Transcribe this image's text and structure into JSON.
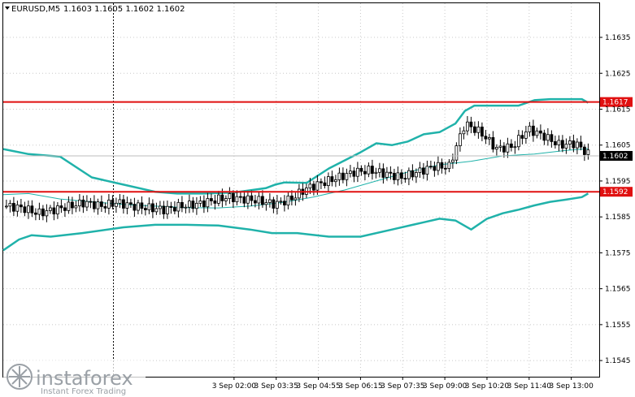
{
  "header": {
    "title": "EURUSD,M5",
    "ohlc": "1.1603 1.1605 1.1602 1.1602"
  },
  "watermark": {
    "brand": "instaforex",
    "tagline": "Instant Forex Trading"
  },
  "colors": {
    "background": "#ffffff",
    "grid": "#c8c8c8",
    "band": "#20b2aa",
    "level": "#e01010",
    "candle": "#000000",
    "price_label_bg": "#000000",
    "price_label_fg": "#ffffff"
  },
  "chart_data": {
    "type": "line",
    "title": "",
    "symbol": "EURUSD",
    "timeframe": "M5",
    "ylim": [
      1.15405,
      1.16445
    ],
    "y_ticks": [
      "1.1635",
      "1.1625",
      "1.1615",
      "1.1605",
      "1.1595",
      "1.1585",
      "1.1575",
      "1.1565",
      "1.1555",
      "1.1545"
    ],
    "x_ticks": [
      "3 Sep 02:00",
      "3 Sep 03:35",
      "3 Sep 04:55",
      "3 Sep 06:15",
      "3 Sep 07:35",
      "3 Sep 09:00",
      "3 Sep 10:20",
      "3 Sep 11:40",
      "3 Sep 13:00"
    ],
    "x_range_hours": [
      -5.3,
      13.55
    ],
    "hlines": [
      {
        "value": 1.1617,
        "label": "1.1617"
      },
      {
        "value": 1.1592,
        "label": "1.1592"
      }
    ],
    "current_price": {
      "value": 1.1602,
      "label": "1.1602"
    },
    "series": [
      {
        "name": "",
        "role": "upper_band",
        "x": [
          -5.3,
          -4.5,
          -3.5,
          -2.5,
          -1.5,
          -0.5,
          0.2,
          1.0,
          2.0,
          3.0,
          3.3,
          3.6,
          4.3,
          5.0,
          6.0,
          6.5,
          7.0,
          7.5,
          8.0,
          8.5,
          9.0,
          9.3,
          9.6,
          10.0,
          10.5,
          11.0,
          11.5,
          12.0,
          12.5,
          13.0,
          13.2
        ],
        "y": [
          1.16039,
          1.16025,
          1.16018,
          1.1596,
          1.1594,
          1.1592,
          1.15915,
          1.15915,
          1.15918,
          1.1593,
          1.1594,
          1.15946,
          1.15945,
          1.15985,
          1.1603,
          1.16055,
          1.1605,
          1.1606,
          1.1608,
          1.16086,
          1.1611,
          1.16145,
          1.1616,
          1.1616,
          1.1616,
          1.1616,
          1.16175,
          1.16178,
          1.16178,
          1.16178,
          1.16168
        ]
      },
      {
        "name": "",
        "role": "middle_band",
        "x": [
          -5.3,
          -4.5,
          -3.5,
          -2.5,
          -1.5,
          -0.5,
          0.5,
          1.5,
          2.5,
          3.5,
          4.5,
          5.5,
          6.5,
          7.5,
          8.5,
          9.5,
          10.5,
          11.5,
          12.5,
          13.2
        ],
        "y": [
          1.15912,
          1.15915,
          1.159,
          1.15892,
          1.15885,
          1.1588,
          1.15876,
          1.15875,
          1.1588,
          1.1589,
          1.15905,
          1.15925,
          1.1595,
          1.15975,
          1.15995,
          1.16005,
          1.1602,
          1.16025,
          1.16035,
          1.1604
        ]
      },
      {
        "name": "",
        "role": "lower_band",
        "x": [
          -5.3,
          -4.8,
          -4.4,
          -3.8,
          -2.8,
          -1.5,
          -0.5,
          0.5,
          1.5,
          2.5,
          3.2,
          4.0,
          5.0,
          6.0,
          7.0,
          8.0,
          8.5,
          9.0,
          9.5,
          10.0,
          10.5,
          11.0,
          11.5,
          12.0,
          12.5,
          13.0,
          13.2
        ],
        "y": [
          1.15757,
          1.15787,
          1.15799,
          1.15795,
          1.15805,
          1.15821,
          1.15828,
          1.15828,
          1.15826,
          1.15815,
          1.15805,
          1.15805,
          1.15795,
          1.15795,
          1.15815,
          1.15835,
          1.15845,
          1.1584,
          1.15815,
          1.15845,
          1.1586,
          1.1587,
          1.15882,
          1.15892,
          1.15898,
          1.15905,
          1.15915
        ]
      },
      {
        "name": "",
        "role": "close",
        "x": [
          -5.2,
          -4.7,
          -4.2,
          -3.7,
          -3.2,
          -2.7,
          -2.2,
          -1.7,
          -1.2,
          -0.7,
          -0.2,
          0.3,
          0.8,
          1.3,
          1.8,
          2.3,
          2.8,
          3.3,
          3.8,
          4.3,
          4.8,
          5.3,
          5.8,
          6.3,
          6.8,
          7.3,
          7.8,
          8.3,
          8.8,
          9.3,
          9.8,
          10.3,
          10.8,
          11.3,
          11.8,
          12.3,
          12.8,
          13.2
        ],
        "y": [
          1.1588,
          1.15875,
          1.1586,
          1.1587,
          1.1588,
          1.1589,
          1.1588,
          1.1589,
          1.1588,
          1.15875,
          1.1587,
          1.1588,
          1.15885,
          1.15895,
          1.15905,
          1.159,
          1.15895,
          1.15885,
          1.159,
          1.1593,
          1.15945,
          1.1596,
          1.15975,
          1.1598,
          1.1597,
          1.1596,
          1.15975,
          1.1599,
          1.1599,
          1.1611,
          1.16085,
          1.1604,
          1.16045,
          1.16095,
          1.16075,
          1.1605,
          1.16055,
          1.16025
        ]
      }
    ]
  }
}
